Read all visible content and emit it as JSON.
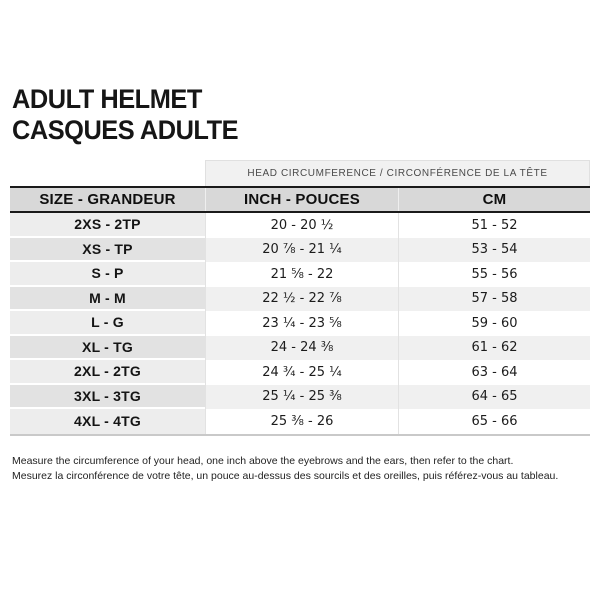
{
  "page_title": {
    "en": "ADULT HELMET",
    "fr": "CASQUES ADULTE"
  },
  "table": {
    "span_header": "HEAD CIRCUMFERENCE / CIRCONFÉRENCE DE LA TÊTE",
    "columns": [
      "SIZE - GRANDEUR",
      "INCH - POUCES",
      "CM"
    ],
    "rows": [
      {
        "size": "2XS - 2TP",
        "inch": "20 - 20 ½",
        "cm": "51 - 52"
      },
      {
        "size": "XS - TP",
        "inch": "20 ⅞ - 21 ¼",
        "cm": "53 - 54"
      },
      {
        "size": "S - P",
        "inch": "21 ⅝ - 22",
        "cm": "55 - 56"
      },
      {
        "size": "M - M",
        "inch": "22 ½ - 22 ⅞",
        "cm": "57 - 58"
      },
      {
        "size": "L - G",
        "inch": "23 ¼ - 23 ⅝",
        "cm": "59 - 60"
      },
      {
        "size": "XL - TG",
        "inch": "24 - 24 ⅜",
        "cm": "61 - 62"
      },
      {
        "size": "2XL - 2TG",
        "inch": "24 ¾ - 25 ¼",
        "cm": "63 - 64"
      },
      {
        "size": "3XL - 3TG",
        "inch": "25 ¼ - 25 ⅜",
        "cm": "64 - 65"
      },
      {
        "size": "4XL - 4TG",
        "inch": "25 ⅜ - 26",
        "cm": "65 - 66"
      }
    ]
  },
  "footer": {
    "en": "Measure the circumference of your head, one inch above the eyebrows and the ears, then refer to the chart.",
    "fr": "Mesurez la circonférence de votre tête, un pouce au-dessus des sourcils et des oreilles, puis référez-vous au tableau."
  },
  "colors": {
    "header_row_bg": "#d8d8d8",
    "span_header_bg": "#f1f1f1",
    "size_col_odd": "#ededed",
    "size_col_even": "#e2e2e2",
    "data_col_odd": "#ffffff",
    "data_col_even": "#f0f0f0",
    "border_black": "#1a1a1a",
    "table_bottom_border": "#c9c9c9",
    "text": "#1a1a1a"
  }
}
